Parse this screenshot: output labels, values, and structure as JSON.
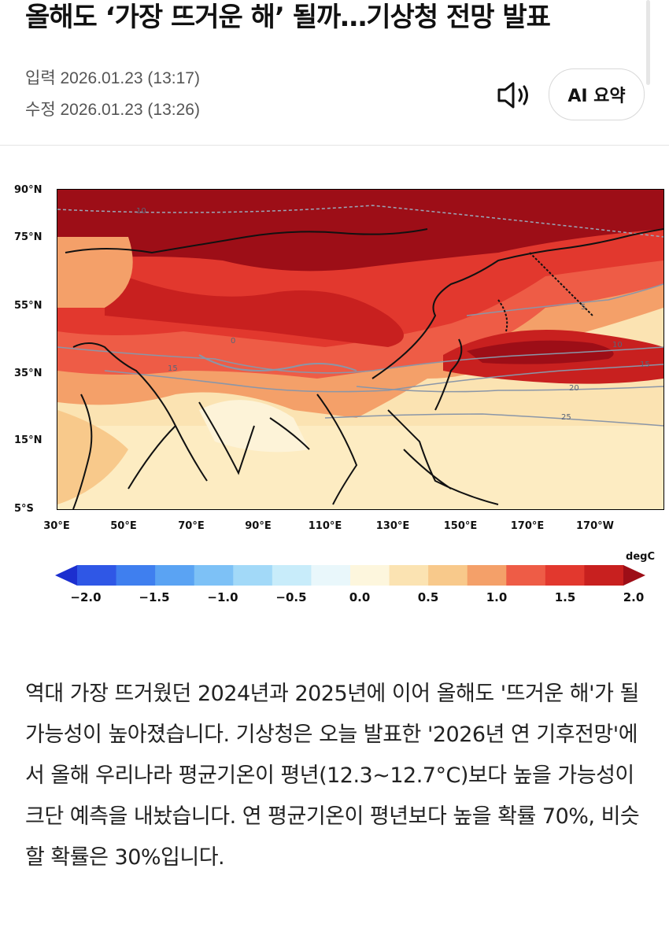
{
  "article": {
    "headline": "올해도 ‘가장 뜨거운 해’ 될까…기상청 전망 발표",
    "input_label": "입력 2026.01.23 (13:17)",
    "edit_label": "수정 2026.01.23 (13:26)",
    "ai_summary_label": "AI 요약",
    "speaker_icon": "speaker-icon",
    "body": "역대 가장 뜨거웠던 2024년과 2025년에 이어 올해도 '뜨거운 해'가 될 가능성이 높아졌습니다. 기상청은 오늘 발표한 '2026년 연 기후전망'에서 올해 우리나라 평균기온이 평년(12.3~12.7°C)보다 높을 가능성이 크단 예측을 내놨습니다. 연 평균기온이 평년보다 높을 확률 70%, 비슷할 확률은 30%입니다."
  },
  "figure": {
    "lat_labels": [
      "90°N",
      "75°N",
      "55°N",
      "35°N",
      "15°N",
      "5°S"
    ],
    "lon_labels": [
      "30°E",
      "50°E",
      "70°E",
      "90°E",
      "110°E",
      "130°E",
      "150°E",
      "170°E",
      "170°W"
    ],
    "colorbar_unit": "degC",
    "colorbar_ticks": [
      "−2.0",
      "−1.5",
      "−1.0",
      "−0.5",
      "0.0",
      "0.5",
      "1.0",
      "1.5",
      "2.0"
    ],
    "colorbar_colors": [
      "#1c2fcf",
      "#2f57e6",
      "#3f7fef",
      "#5aa3f3",
      "#7dc1f6",
      "#a2d9f8",
      "#c8ecfa",
      "#e9f7fb",
      "#fdf6dd",
      "#fbe3b2",
      "#f8c98b",
      "#f4a069",
      "#ee5c46",
      "#e2382e",
      "#c8201f",
      "#9d0e17"
    ],
    "contour_labels": [
      "10",
      "15",
      "20",
      "25",
      "5",
      "0",
      "10",
      "15"
    ]
  }
}
